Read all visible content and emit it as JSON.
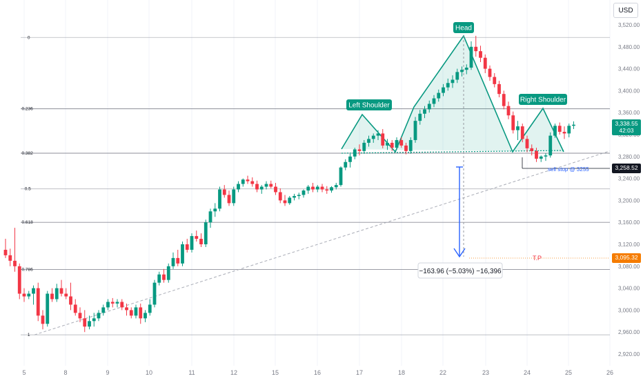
{
  "toolbar": {
    "currency": "USD"
  },
  "price_axis": {
    "labels": [
      "3,520.00",
      "3,480.00",
      "3,440.00",
      "3,400.00",
      "3,360.00",
      "3,320.00",
      "3,280.00",
      "3,240.00",
      "3,200.00",
      "3,160.00",
      "3,120.00",
      "3,080.00",
      "3,040.00",
      "3,000.00",
      "2,960.00",
      "2,920.00"
    ]
  },
  "time_axis": {
    "labels": [
      "5",
      "8",
      "9",
      "10",
      "11",
      "12",
      "15",
      "16",
      "17",
      "18",
      "22",
      "23",
      "24",
      "25",
      "26"
    ]
  },
  "fib": [
    {
      "label": "0",
      "price": 3497
    },
    {
      "label": "0.236",
      "price": 3367
    },
    {
      "label": "0.382",
      "price": 3286
    },
    {
      "label": "0.5",
      "price": 3221
    },
    {
      "label": "0.618",
      "price": 3160
    },
    {
      "label": "0.786",
      "price": 3074
    },
    {
      "label": "1",
      "price": 2955
    }
  ],
  "annotations": {
    "head": "Head",
    "left_shoulder": "Left Shoulder",
    "right_shoulder": "Right Shoulder",
    "sell_stop": "sell stop @ 3255",
    "tp": "T.P",
    "measure": "−163.96 (−5.03%) −16,396"
  },
  "price_tags": {
    "current": "3,338.55",
    "countdown": "42:03",
    "stop": "3,258.52",
    "target": "3,095.32"
  },
  "colors": {
    "up": "#089981",
    "down": "#f23645",
    "fib_line": "#787b86",
    "pattern": "#089981",
    "measure": "#2962ff",
    "target": "#f57c00"
  },
  "chart_data": {
    "type": "candlestick",
    "y_unit": "USD",
    "ylim": [
      2910,
      3535
    ],
    "x_ticks": [
      "5",
      "8",
      "9",
      "10",
      "11",
      "12",
      "15",
      "16",
      "17",
      "18",
      "22",
      "23",
      "24",
      "25",
      "26"
    ],
    "ohlc": [
      [
        3110,
        3130,
        3095,
        3100
      ],
      [
        3100,
        3112,
        3080,
        3090
      ],
      [
        3090,
        3150,
        3070,
        3080
      ],
      [
        3080,
        3085,
        3020,
        3030
      ],
      [
        3030,
        3040,
        3015,
        3025
      ],
      [
        3025,
        3035,
        3020,
        3030
      ],
      [
        3030,
        3045,
        3010,
        3040
      ],
      [
        3040,
        3050,
        2980,
        2990
      ],
      [
        2990,
        3000,
        2965,
        2975
      ],
      [
        2975,
        3035,
        2970,
        3030
      ],
      [
        3030,
        3040,
        3015,
        3020
      ],
      [
        3020,
        3048,
        3015,
        3040
      ],
      [
        3040,
        3055,
        3025,
        3030
      ],
      [
        3030,
        3040,
        3020,
        3025
      ],
      [
        3025,
        3050,
        3000,
        3010
      ],
      [
        3010,
        3020,
        2990,
        2995
      ],
      [
        2995,
        3005,
        2978,
        2985
      ],
      [
        2985,
        3000,
        2960,
        2970
      ],
      [
        2970,
        2990,
        2965,
        2980
      ],
      [
        2980,
        2995,
        2970,
        2985
      ],
      [
        2985,
        3000,
        2980,
        2995
      ],
      [
        2995,
        3010,
        2990,
        3005
      ],
      [
        3005,
        3020,
        3000,
        3015
      ],
      [
        3015,
        3022,
        3005,
        3012
      ],
      [
        3012,
        3020,
        3005,
        3015
      ],
      [
        3015,
        3020,
        3000,
        3005
      ],
      [
        3005,
        3012,
        2990,
        3000
      ],
      [
        3000,
        3005,
        2985,
        2990
      ],
      [
        2990,
        3010,
        2985,
        3005
      ],
      [
        3005,
        3012,
        2975,
        2985
      ],
      [
        2985,
        3000,
        2978,
        2995
      ],
      [
        2995,
        3020,
        2990,
        3010
      ],
      [
        3010,
        3055,
        3005,
        3050
      ],
      [
        3050,
        3070,
        3045,
        3065
      ],
      [
        3065,
        3075,
        3050,
        3055
      ],
      [
        3055,
        3085,
        3050,
        3080
      ],
      [
        3080,
        3105,
        3075,
        3095
      ],
      [
        3095,
        3110,
        3080,
        3085
      ],
      [
        3085,
        3125,
        3080,
        3120
      ],
      [
        3120,
        3130,
        3105,
        3110
      ],
      [
        3110,
        3140,
        3105,
        3135
      ],
      [
        3135,
        3145,
        3125,
        3130
      ],
      [
        3130,
        3140,
        3115,
        3120
      ],
      [
        3120,
        3165,
        3115,
        3160
      ],
      [
        3160,
        3185,
        3150,
        3180
      ],
      [
        3180,
        3195,
        3170,
        3185
      ],
      [
        3185,
        3225,
        3180,
        3220
      ],
      [
        3220,
        3228,
        3205,
        3210
      ],
      [
        3210,
        3218,
        3190,
        3195
      ],
      [
        3195,
        3225,
        3190,
        3220
      ],
      [
        3220,
        3235,
        3215,
        3230
      ],
      [
        3230,
        3240,
        3225,
        3238
      ],
      [
        3238,
        3245,
        3230,
        3235
      ],
      [
        3235,
        3242,
        3225,
        3230
      ],
      [
        3230,
        3236,
        3215,
        3220
      ],
      [
        3220,
        3228,
        3212,
        3225
      ],
      [
        3225,
        3235,
        3220,
        3230
      ],
      [
        3230,
        3236,
        3222,
        3225
      ],
      [
        3225,
        3232,
        3210,
        3215
      ],
      [
        3215,
        3222,
        3195,
        3200
      ],
      [
        3200,
        3210,
        3190,
        3195
      ],
      [
        3195,
        3208,
        3192,
        3205
      ],
      [
        3205,
        3212,
        3200,
        3208
      ],
      [
        3208,
        3214,
        3202,
        3210
      ],
      [
        3210,
        3220,
        3205,
        3218
      ],
      [
        3218,
        3228,
        3212,
        3225
      ],
      [
        3225,
        3232,
        3215,
        3220
      ],
      [
        3220,
        3228,
        3215,
        3225
      ],
      [
        3225,
        3230,
        3215,
        3220
      ],
      [
        3220,
        3226,
        3212,
        3218
      ],
      [
        3218,
        3226,
        3214,
        3224
      ],
      [
        3224,
        3232,
        3220,
        3228
      ],
      [
        3228,
        3262,
        3225,
        3260
      ],
      [
        3260,
        3275,
        3255,
        3270
      ],
      [
        3270,
        3285,
        3260,
        3280
      ],
      [
        3280,
        3296,
        3275,
        3293
      ],
      [
        3293,
        3302,
        3282,
        3290
      ],
      [
        3290,
        3310,
        3285,
        3305
      ],
      [
        3305,
        3318,
        3298,
        3312
      ],
      [
        3312,
        3322,
        3305,
        3318
      ],
      [
        3318,
        3328,
        3310,
        3322
      ],
      [
        3322,
        3330,
        3295,
        3300
      ],
      [
        3300,
        3312,
        3292,
        3305
      ],
      [
        3305,
        3310,
        3290,
        3296
      ],
      [
        3296,
        3315,
        3292,
        3310
      ],
      [
        3310,
        3315,
        3296,
        3300
      ],
      [
        3300,
        3305,
        3284,
        3290
      ],
      [
        3290,
        3315,
        3285,
        3310
      ],
      [
        3310,
        3352,
        3305,
        3345
      ],
      [
        3345,
        3365,
        3338,
        3358
      ],
      [
        3358,
        3372,
        3350,
        3366
      ],
      [
        3366,
        3382,
        3360,
        3376
      ],
      [
        3376,
        3392,
        3370,
        3386
      ],
      [
        3386,
        3402,
        3380,
        3396
      ],
      [
        3396,
        3412,
        3390,
        3406
      ],
      [
        3406,
        3422,
        3400,
        3414
      ],
      [
        3414,
        3428,
        3405,
        3420
      ],
      [
        3420,
        3440,
        3414,
        3434
      ],
      [
        3434,
        3444,
        3426,
        3438
      ],
      [
        3438,
        3448,
        3430,
        3442
      ],
      [
        3442,
        3490,
        3438,
        3480
      ],
      [
        3480,
        3500,
        3462,
        3472
      ],
      [
        3472,
        3482,
        3452,
        3460
      ],
      [
        3460,
        3466,
        3432,
        3440
      ],
      [
        3440,
        3446,
        3418,
        3425
      ],
      [
        3425,
        3432,
        3406,
        3412
      ],
      [
        3412,
        3418,
        3388,
        3394
      ],
      [
        3394,
        3400,
        3366,
        3372
      ],
      [
        3372,
        3380,
        3348,
        3355
      ],
      [
        3355,
        3362,
        3322,
        3328
      ],
      [
        3328,
        3345,
        3310,
        3335
      ],
      [
        3335,
        3340,
        3306,
        3312
      ],
      [
        3312,
        3318,
        3288,
        3295
      ],
      [
        3295,
        3302,
        3282,
        3290
      ],
      [
        3290,
        3296,
        3270,
        3276
      ],
      [
        3276,
        3282,
        3270,
        3280
      ],
      [
        3280,
        3286,
        3272,
        3282
      ],
      [
        3282,
        3324,
        3278,
        3318
      ],
      [
        3318,
        3340,
        3314,
        3336
      ],
      [
        3336,
        3342,
        3320,
        3325
      ],
      [
        3325,
        3335,
        3312,
        3322
      ],
      [
        3322,
        3340,
        3315,
        3336
      ],
      [
        3336,
        3344,
        3330,
        3338
      ]
    ]
  }
}
